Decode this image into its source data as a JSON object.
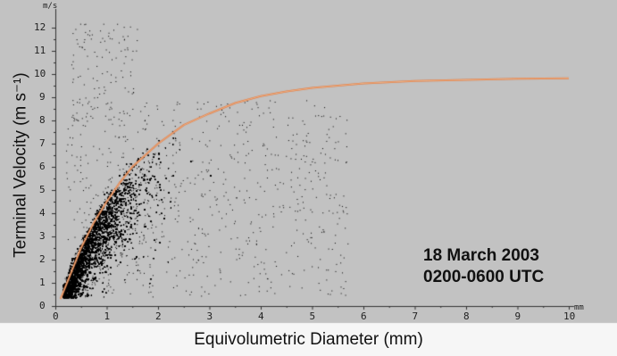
{
  "chart_data": {
    "type": "scatter",
    "title": "",
    "xlabel": "Equivolumetric Diameter (mm)",
    "ylabel": "Terminal Velocity (m s⁻¹)",
    "x_unit": "mm",
    "y_unit": "m/s",
    "xlim": [
      0,
      10
    ],
    "ylim": [
      0,
      12.5
    ],
    "x_ticks": [
      "0",
      "1",
      "2",
      "3",
      "4",
      "5",
      "6",
      "7",
      "8",
      "9",
      "10"
    ],
    "y_ticks": [
      "0",
      "1",
      "2",
      "3",
      "4",
      "5",
      "6",
      "7",
      "8",
      "9",
      "10",
      "11",
      "12"
    ],
    "grid": false,
    "annotation": [
      "18 March 2003",
      "0200-0600 UTC"
    ],
    "fit_curve": {
      "x": [
        0.1,
        0.3,
        0.5,
        0.75,
        1.0,
        1.25,
        1.5,
        2.0,
        2.5,
        3.0,
        3.5,
        4.0,
        4.5,
        5.0,
        5.5,
        6.0,
        7.0,
        8.0,
        9.0,
        10.0
      ],
      "y": [
        0.3,
        1.4,
        2.5,
        3.6,
        4.5,
        5.3,
        6.0,
        7.0,
        7.8,
        8.3,
        8.75,
        9.05,
        9.25,
        9.4,
        9.5,
        9.6,
        9.7,
        9.75,
        9.8,
        9.82
      ],
      "color": "#e07840"
    },
    "point_color": "#000000",
    "background_color": "#c2c2c2"
  }
}
